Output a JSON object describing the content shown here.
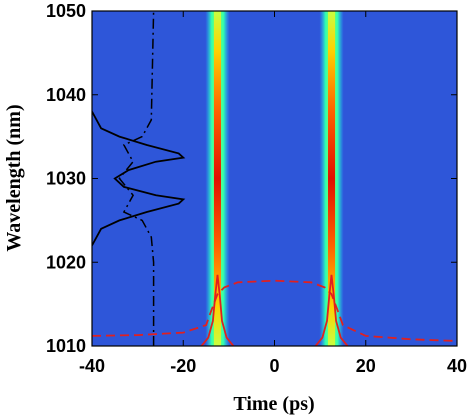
{
  "chart_data": {
    "type": "heatmap",
    "title": "",
    "xlabel": "Time (ps)",
    "ylabel": "Wavelength (nm)",
    "xlim": [
      -40,
      40
    ],
    "ylim": [
      1010,
      1050
    ],
    "xticks": [
      -40,
      -20,
      0,
      20,
      40
    ],
    "yticks": [
      1010,
      1020,
      1030,
      1040,
      1050
    ],
    "colormap": "jet",
    "background_color": "#2e56d9",
    "grid": false,
    "legend": "none",
    "pulses": [
      {
        "center_time_ps": -12.5,
        "width_ps": 2.2
      },
      {
        "center_time_ps": 12.5,
        "width_ps": 2.2
      }
    ],
    "intensity_peak_wavelength_nm": 1030,
    "spectrum_black_solid": {
      "wavelength_nm": [
        1022,
        1024,
        1025,
        1026,
        1027,
        1027.5,
        1028,
        1029,
        1030,
        1031,
        1032,
        1032.5,
        1033,
        1034,
        1035,
        1036,
        1038
      ],
      "time_ps": [
        -40,
        -38,
        -34,
        -28,
        -21,
        -20,
        -26,
        -33,
        -35,
        -32,
        -26,
        -20,
        -21,
        -28,
        -34,
        -38,
        -40
      ]
    },
    "spectrum_black_dashdot": {
      "wavelength_nm": [
        1010,
        1020,
        1023,
        1025,
        1026,
        1027,
        1028,
        1030,
        1032,
        1033,
        1034,
        1035,
        1037,
        1050
      ],
      "time_ps": [
        -26.5,
        -26.5,
        -27,
        -29,
        -33,
        -32,
        -31,
        -34,
        -31,
        -32,
        -33,
        -29,
        -27,
        -26.5
      ]
    },
    "profile_red_dashed": {
      "time_ps": [
        -40,
        -30,
        -20,
        -15,
        -14,
        -12.5,
        -11,
        -8,
        0,
        8,
        11,
        12.5,
        14,
        15,
        20,
        30,
        40
      ],
      "wavelength_nm": [
        1011.2,
        1011.3,
        1011.6,
        1012.5,
        1014,
        1016.2,
        1017,
        1017.6,
        1017.8,
        1017.6,
        1017,
        1016.2,
        1014,
        1012.5,
        1011.2,
        1010.8,
        1010.6
      ]
    },
    "profile_red_solid": [
      {
        "time_ps": [
          -16,
          -14.5,
          -13.5,
          -13,
          -12.5,
          -12,
          -11.5,
          -10.5,
          -9
        ],
        "wavelength_nm": [
          1010,
          1011,
          1013,
          1016,
          1018.5,
          1016,
          1013,
          1011,
          1010
        ]
      },
      {
        "time_ps": [
          9,
          10.5,
          11.5,
          12,
          12.5,
          13,
          13.5,
          14.5,
          16
        ],
        "wavelength_nm": [
          1010,
          1011,
          1013,
          1016,
          1018.5,
          1016,
          1013,
          1011,
          1010
        ]
      }
    ]
  }
}
